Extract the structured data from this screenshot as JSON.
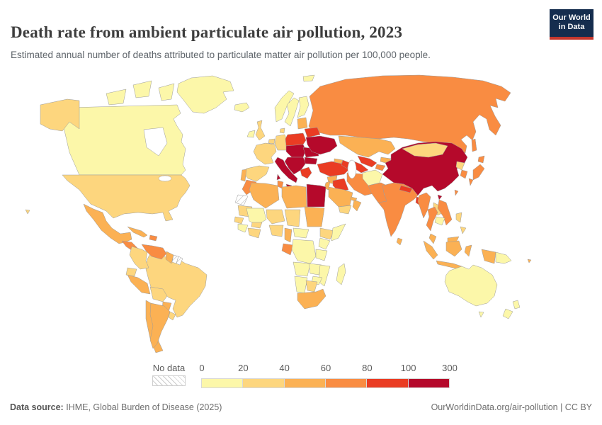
{
  "header": {
    "title": "Death rate from ambient particulate air pollution, 2023",
    "subtitle": "Estimated annual number of deaths attributed to particulate matter air pollution per 100,000 people.",
    "logo": {
      "line1": "Our World",
      "line2": "in Data",
      "bg_color": "#152d4e",
      "bar_color": "#c5372d"
    }
  },
  "legend": {
    "no_data_label": "No data",
    "tick_labels": [
      "0",
      "20",
      "40",
      "60",
      "80",
      "100",
      "300"
    ]
  },
  "footer": {
    "source_label": "Data source:",
    "source_text": " IHME, Global Burden of Disease (2025)",
    "right_text": "OurWorldinData.org/air-pollution | CC BY"
  },
  "chart_data": {
    "type": "choropleth_map",
    "title": "Death rate from ambient particulate air pollution, 2023",
    "unit": "deaths per 100,000 people",
    "year": 2023,
    "legend_position": "bottom",
    "bins": [
      {
        "range": "0-20",
        "color": "#FCF7A9"
      },
      {
        "range": "20-40",
        "color": "#FDD67E"
      },
      {
        "range": "40-60",
        "color": "#FBB154"
      },
      {
        "range": "60-80",
        "color": "#F98C42"
      },
      {
        "range": "80-100",
        "color": "#EA3C23"
      },
      {
        "range": "100-300",
        "color": "#B5092B"
      }
    ],
    "no_data": {
      "label": "No data",
      "pattern": "diagonal-hatch",
      "color": "#ffffff"
    },
    "country_bins": {
      "Canada": "0-20",
      "Greenland": "0-20",
      "United States": "20-40",
      "Mexico": "40-60",
      "Guatemala": "60-80",
      "Cuba": "40-60",
      "Haiti": "60-80",
      "Colombia": "20-40",
      "Venezuela": "60-80",
      "Guyana": "40-60",
      "Suriname": "no-data",
      "French Guiana": "no-data",
      "Ecuador": "20-40",
      "Peru": "40-60",
      "Brazil": "20-40",
      "Bolivia": "20-40",
      "Paraguay": "40-60",
      "Uruguay": "20-40",
      "Chile": "40-60",
      "Argentina": "40-60",
      "Iceland": "0-20",
      "Ireland": "0-20",
      "United Kingdom": "20-40",
      "Norway": "0-20",
      "Sweden": "0-20",
      "Finland": "0-20",
      "Denmark": "20-40",
      "France": "20-40",
      "Belgium": "20-40",
      "Germany": "20-40",
      "Spain": "20-40",
      "Portugal": "40-60",
      "Italy": "100-300",
      "Poland": "80-100",
      "Czechia": "100-300",
      "Hungary": "100-300",
      "Serbia": "100-300",
      "Romania": "100-300",
      "Bulgaria": "100-300",
      "Greece": "80-100",
      "Ukraine": "100-300",
      "Belarus": "80-100",
      "Estonia": "40-60",
      "Russia": "60-80",
      "Turkey": "80-100",
      "Georgia": "40-60",
      "Azerbaijan": "80-100",
      "Syria": "40-60",
      "Iraq": "80-100",
      "Iran": "60-80",
      "Saudi Arabia": "40-60",
      "Jordan": "40-60",
      "Yemen": "20-40",
      "Oman": "40-60",
      "United Arab Emirates": "40-60",
      "Kazakhstan": "40-60",
      "Uzbekistan": "80-100",
      "Turkmenistan": "80-100",
      "Kyrgyzstan": "40-60",
      "Tajikistan": "60-80",
      "Afghanistan": "0-20",
      "Pakistan": "60-80",
      "India": "60-80",
      "Nepal": "80-100",
      "Bangladesh": "80-100",
      "Sri Lanka": "40-60",
      "China": "100-300",
      "Mongolia": "20-40",
      "North Korea": "20-40",
      "South Korea": "60-80",
      "Japan": "60-80",
      "Taiwan": "60-80",
      "Myanmar": "60-80",
      "Thailand": "60-80",
      "Laos": "20-40",
      "Cambodia": "0-20",
      "Vietnam": "60-80",
      "Malaysia": "40-60",
      "Indonesia": "40-60",
      "Philippines": "20-40",
      "Papua New Guinea": "0-20",
      "Australia": "0-20",
      "New Zealand": "0-20",
      "Fiji": "40-60",
      "Morocco": "60-80",
      "Western Sahara": "no-data",
      "Algeria": "40-60",
      "Tunisia": "60-80",
      "Libya": "40-60",
      "Egypt": "100-300",
      "Mauritania": "20-40",
      "Mali": "0-20",
      "Niger": "20-40",
      "Chad": "20-40",
      "Sudan": "40-60",
      "Senegal": "20-40",
      "Guinea": "0-20",
      "Burkina Faso": "20-40",
      "Cote d'Ivoire": "20-40",
      "Nigeria": "20-40",
      "Cameroon": "40-60",
      "Central African Republic": "0-20",
      "Ethiopia": "20-40",
      "Somalia": "0-20",
      "Gabon": "60-80",
      "DR Congo": "0-20",
      "Kenya": "0-20",
      "Tanzania": "0-20",
      "Angola": "0-20",
      "Zambia": "0-20",
      "Mozambique": "0-20",
      "Zimbabwe": "0-20",
      "Namibia": "0-20",
      "Botswana": "20-40",
      "South Africa": "40-60",
      "Madagascar": "0-20"
    }
  }
}
